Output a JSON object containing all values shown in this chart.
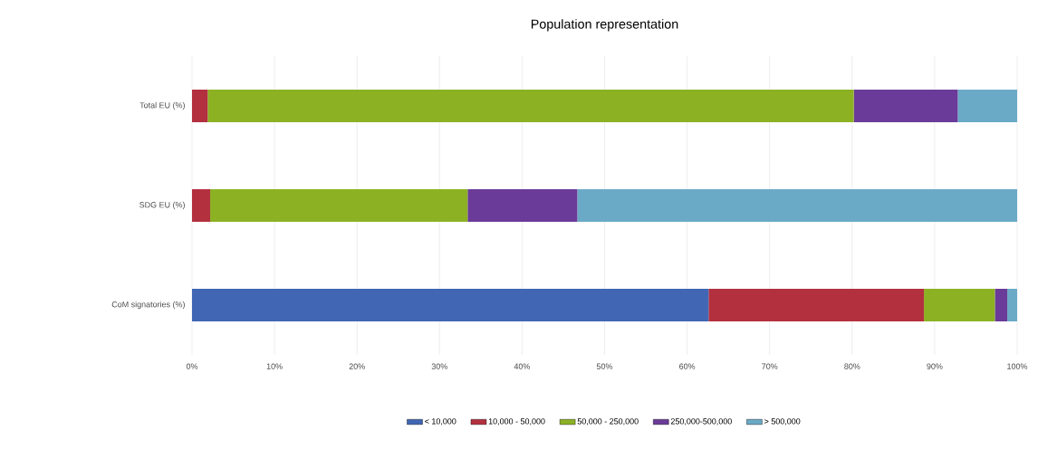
{
  "chart_data": {
    "type": "bar",
    "orientation": "horizontal",
    "stacked": true,
    "title": "Population representation",
    "categories": [
      "Total EU (%)",
      "SDG EU (%)",
      "CoM signatories (%)"
    ],
    "series": [
      {
        "name": "< 10,000",
        "color": "#4066b4",
        "values": [
          0,
          0,
          62.6
        ]
      },
      {
        "name": "10,000 - 50,000",
        "color": "#b3303f",
        "values": [
          1.9,
          2.2,
          26.1
        ]
      },
      {
        "name": "50,000 - 250,000",
        "color": "#8cb224",
        "values": [
          78.3,
          31.2,
          8.6
        ]
      },
      {
        "name": "250,000-500,000",
        "color": "#6a3b98",
        "values": [
          12.6,
          13.3,
          1.5
        ]
      },
      {
        "name": "> 500,000",
        "color": "#6aaac6",
        "values": [
          7.2,
          53.3,
          1.2
        ]
      }
    ],
    "xlim": [
      0,
      100
    ],
    "xticks": [
      {
        "value": 0,
        "label": "0%"
      },
      {
        "value": 10,
        "label": "10%"
      },
      {
        "value": 20,
        "label": "20%"
      },
      {
        "value": 30,
        "label": "30%"
      },
      {
        "value": 40,
        "label": "40%"
      },
      {
        "value": 50,
        "label": "50%"
      },
      {
        "value": 60,
        "label": "60%"
      },
      {
        "value": 70,
        "label": "70%"
      },
      {
        "value": 80,
        "label": "80%"
      },
      {
        "value": 90,
        "label": "90%"
      },
      {
        "value": 100,
        "label": "100%"
      }
    ],
    "grid": "x",
    "legend": "bottom"
  }
}
